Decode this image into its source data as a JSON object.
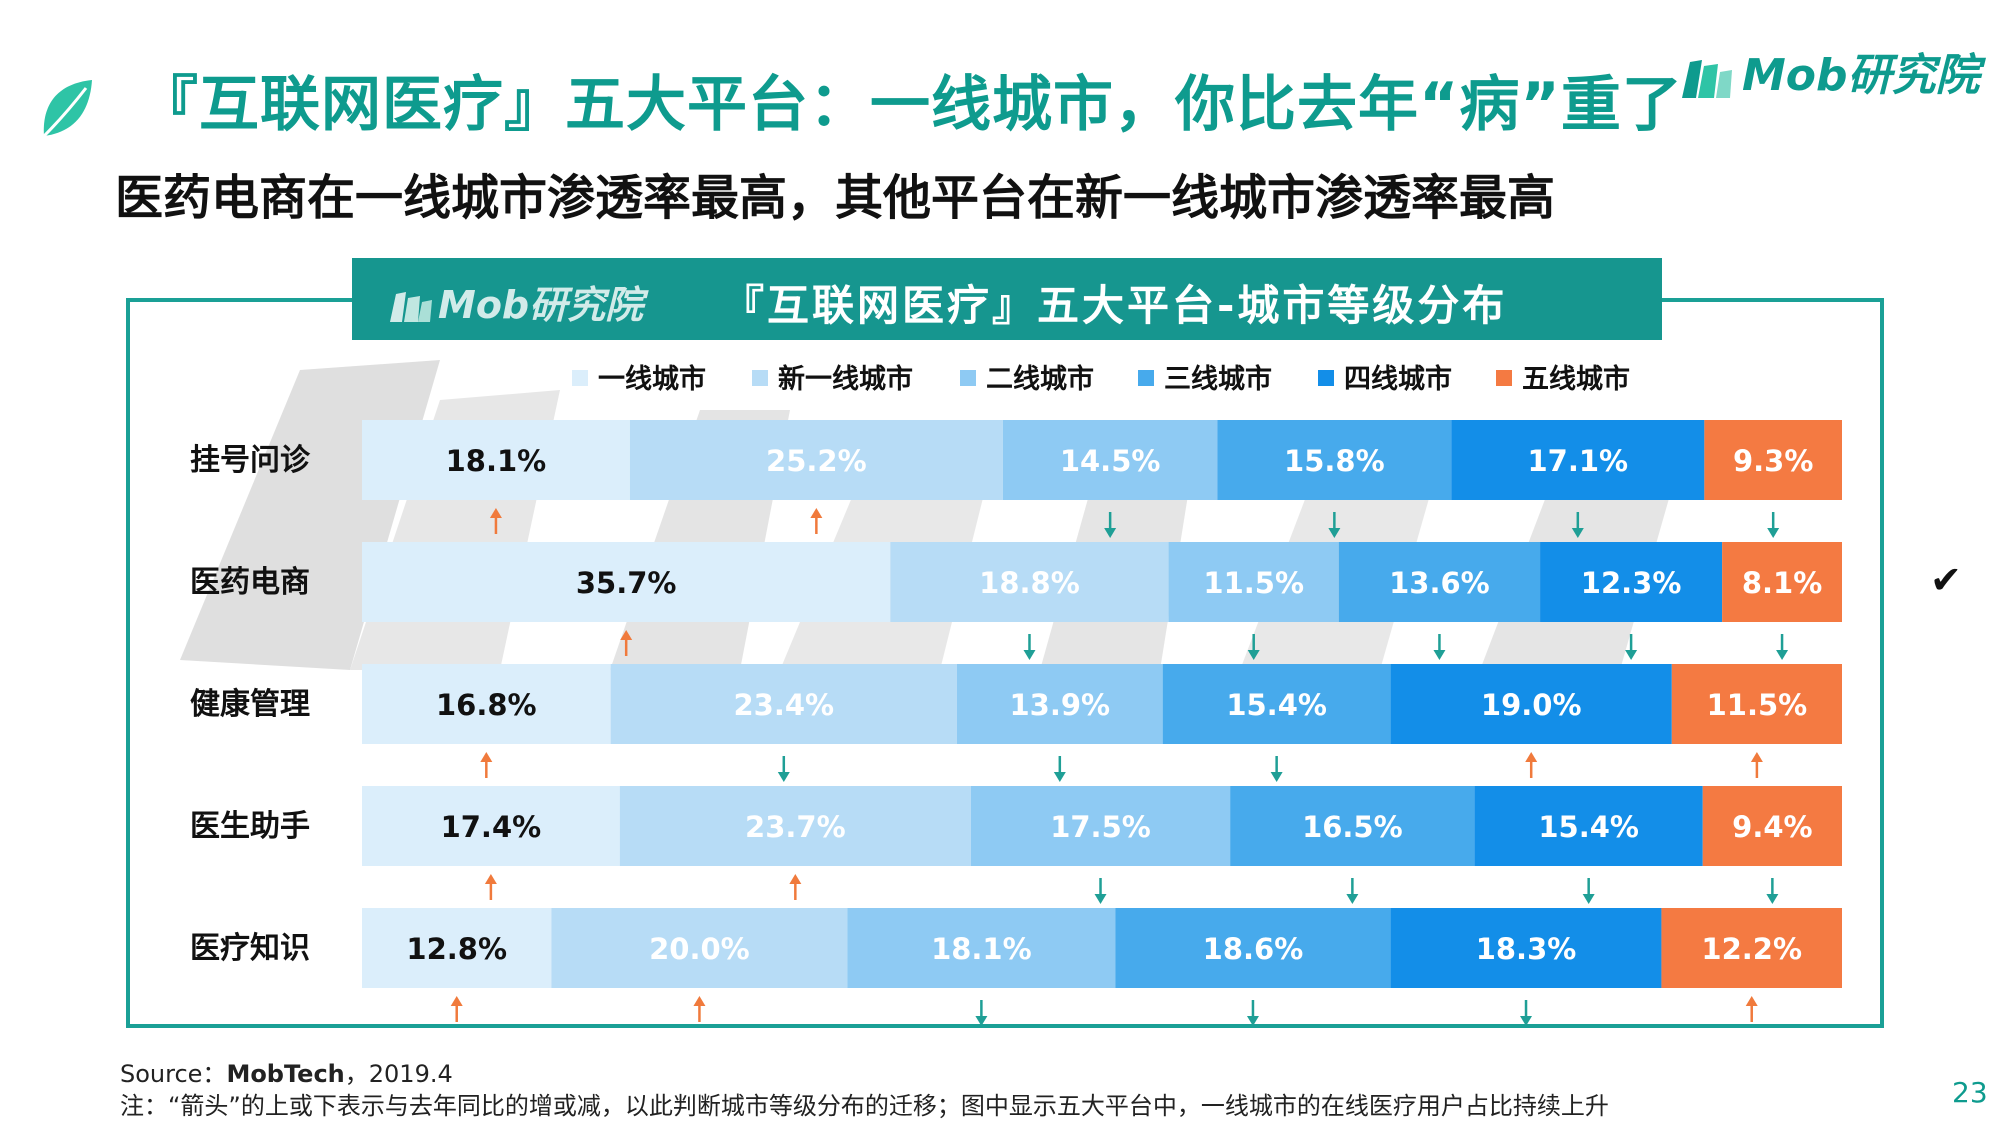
{
  "slide": {
    "title": "『互联网医疗』五大平台：一线城市，你比去年“病”重了",
    "subtitle": "医药电商在一线城市渗透率最高，其他平台在新一线城市渗透率最高",
    "brand": "Mob研究院",
    "page_number": "23",
    "check_mark": "✔"
  },
  "footer": {
    "source_label": "Source：",
    "source_org": "MobTech",
    "source_date": "，2019.4",
    "note": "注：“箭头”的上或下表示与去年同比的增或减，以此判断城市等级分布的迁移；图中显示五大平台中，一线城市的在线医疗用户占比持续上升"
  },
  "colors": {
    "teal": "#16968f",
    "up_arrow": "#f07a3c",
    "down_arrow": "#1f9f96",
    "watermark": "#9e9e9e"
  },
  "chart_data": {
    "type": "bar",
    "orientation": "horizontal",
    "stacked": "100%",
    "title": "『互联网医疗』五大平台-城市等级分布",
    "header_brand": "Mob研究院",
    "categories": [
      "挂号问诊",
      "医药电商",
      "健康管理",
      "医生助手",
      "医疗知识"
    ],
    "legend_position": "top",
    "series": [
      {
        "name": "一线城市",
        "color": "#dbeefb",
        "label_color": "#111111",
        "values": [
          18.1,
          35.7,
          16.8,
          17.4,
          12.8
        ],
        "trend": [
          "up",
          "up",
          "up",
          "up",
          "up"
        ]
      },
      {
        "name": "新一线城市",
        "color": "#b7dcf6",
        "label_color": "#ffffff",
        "values": [
          25.2,
          18.8,
          23.4,
          23.7,
          20.0
        ],
        "trend": [
          "up",
          "down",
          "down",
          "up",
          "up"
        ]
      },
      {
        "name": "二线城市",
        "color": "#8ecaf3",
        "label_color": "#ffffff",
        "values": [
          14.5,
          11.5,
          13.9,
          17.5,
          18.1
        ],
        "trend": [
          "down",
          "down",
          "down",
          "down",
          "down"
        ]
      },
      {
        "name": "三线城市",
        "color": "#47aaec",
        "label_color": "#ffffff",
        "values": [
          15.8,
          13.6,
          15.4,
          16.5,
          18.6
        ],
        "trend": [
          "down",
          "down",
          "down",
          "down",
          "down"
        ]
      },
      {
        "name": "四线城市",
        "color": "#138ee8",
        "label_color": "#ffffff",
        "values": [
          17.1,
          12.3,
          19.0,
          15.4,
          18.3
        ],
        "trend": [
          "down",
          "down",
          "up",
          "down",
          "down"
        ]
      },
      {
        "name": "五线城市",
        "color": "#f47a42",
        "label_color": "#ffffff",
        "values": [
          9.3,
          8.1,
          11.5,
          9.4,
          12.2
        ],
        "trend": [
          "down",
          "down",
          "up",
          "down",
          "up"
        ]
      }
    ]
  }
}
